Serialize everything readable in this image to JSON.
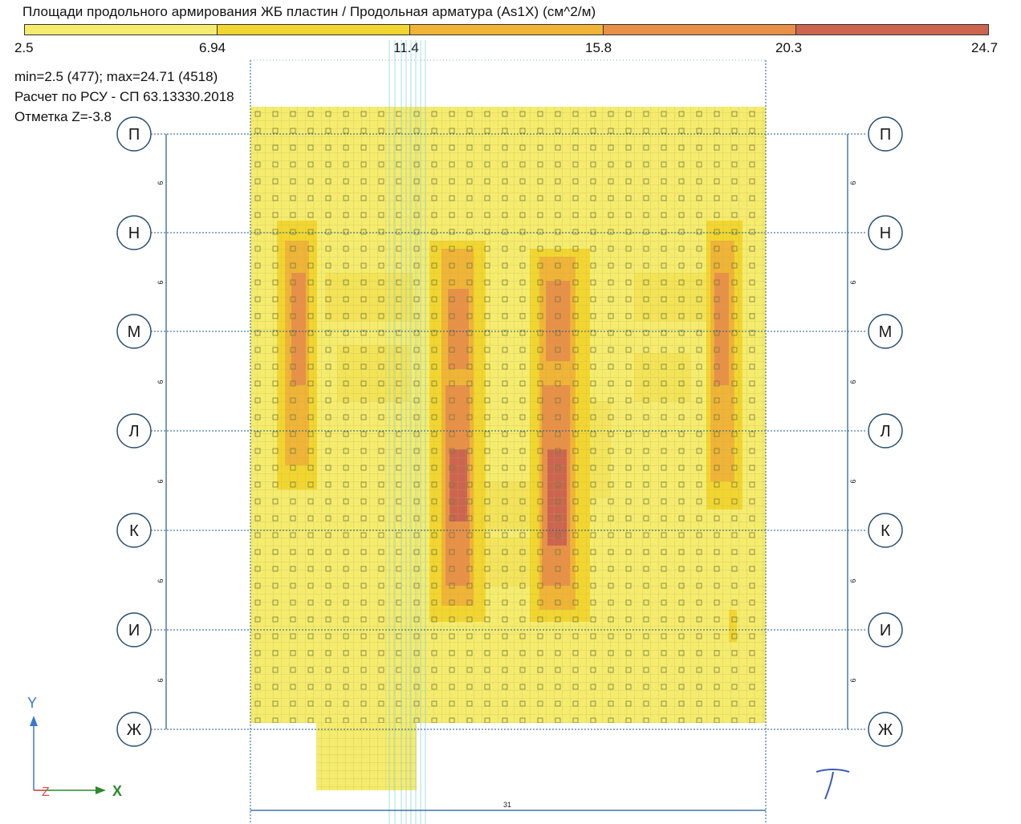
{
  "header": {
    "title": "Площади продольного армирования ЖБ пластин / Продольная арматура (As1X) (см^2/м)"
  },
  "legend": {
    "ticks": [
      "2.5",
      "6.94",
      "11.4",
      "15.8",
      "20.3",
      "24.7"
    ],
    "colors": [
      "#f5ec6e",
      "#f2d630",
      "#f0b437",
      "#e89048",
      "#cc6450"
    ]
  },
  "info": {
    "minmax": "min=2.5 (477); max=24.71 (4518)",
    "calc": "Расчет по РСУ - СП 63.13330.2018",
    "level": "Отметка Z=-3.8"
  },
  "grid_axes": {
    "labels": [
      "П",
      "Н",
      "М",
      "Л",
      "К",
      "И",
      "Ж"
    ],
    "spacing_labels": [
      "6",
      "6",
      "6",
      "6",
      "6",
      "6"
    ],
    "width_label": "31"
  },
  "coord_axes": {
    "y": "Y",
    "z": "Z",
    "x": "X"
  },
  "colors": {
    "plate_base": "#f5ec6e",
    "mid": "#f2d630",
    "orange": "#f0b437",
    "dark_orange": "#e89048",
    "red": "#cc6450",
    "axis_blue": "#1c5a8c",
    "circle_stroke": "#2b4f6f",
    "coord_blue": "#3a78d0",
    "coord_red": "#e05050",
    "coord_green": "#2a8a2a"
  }
}
